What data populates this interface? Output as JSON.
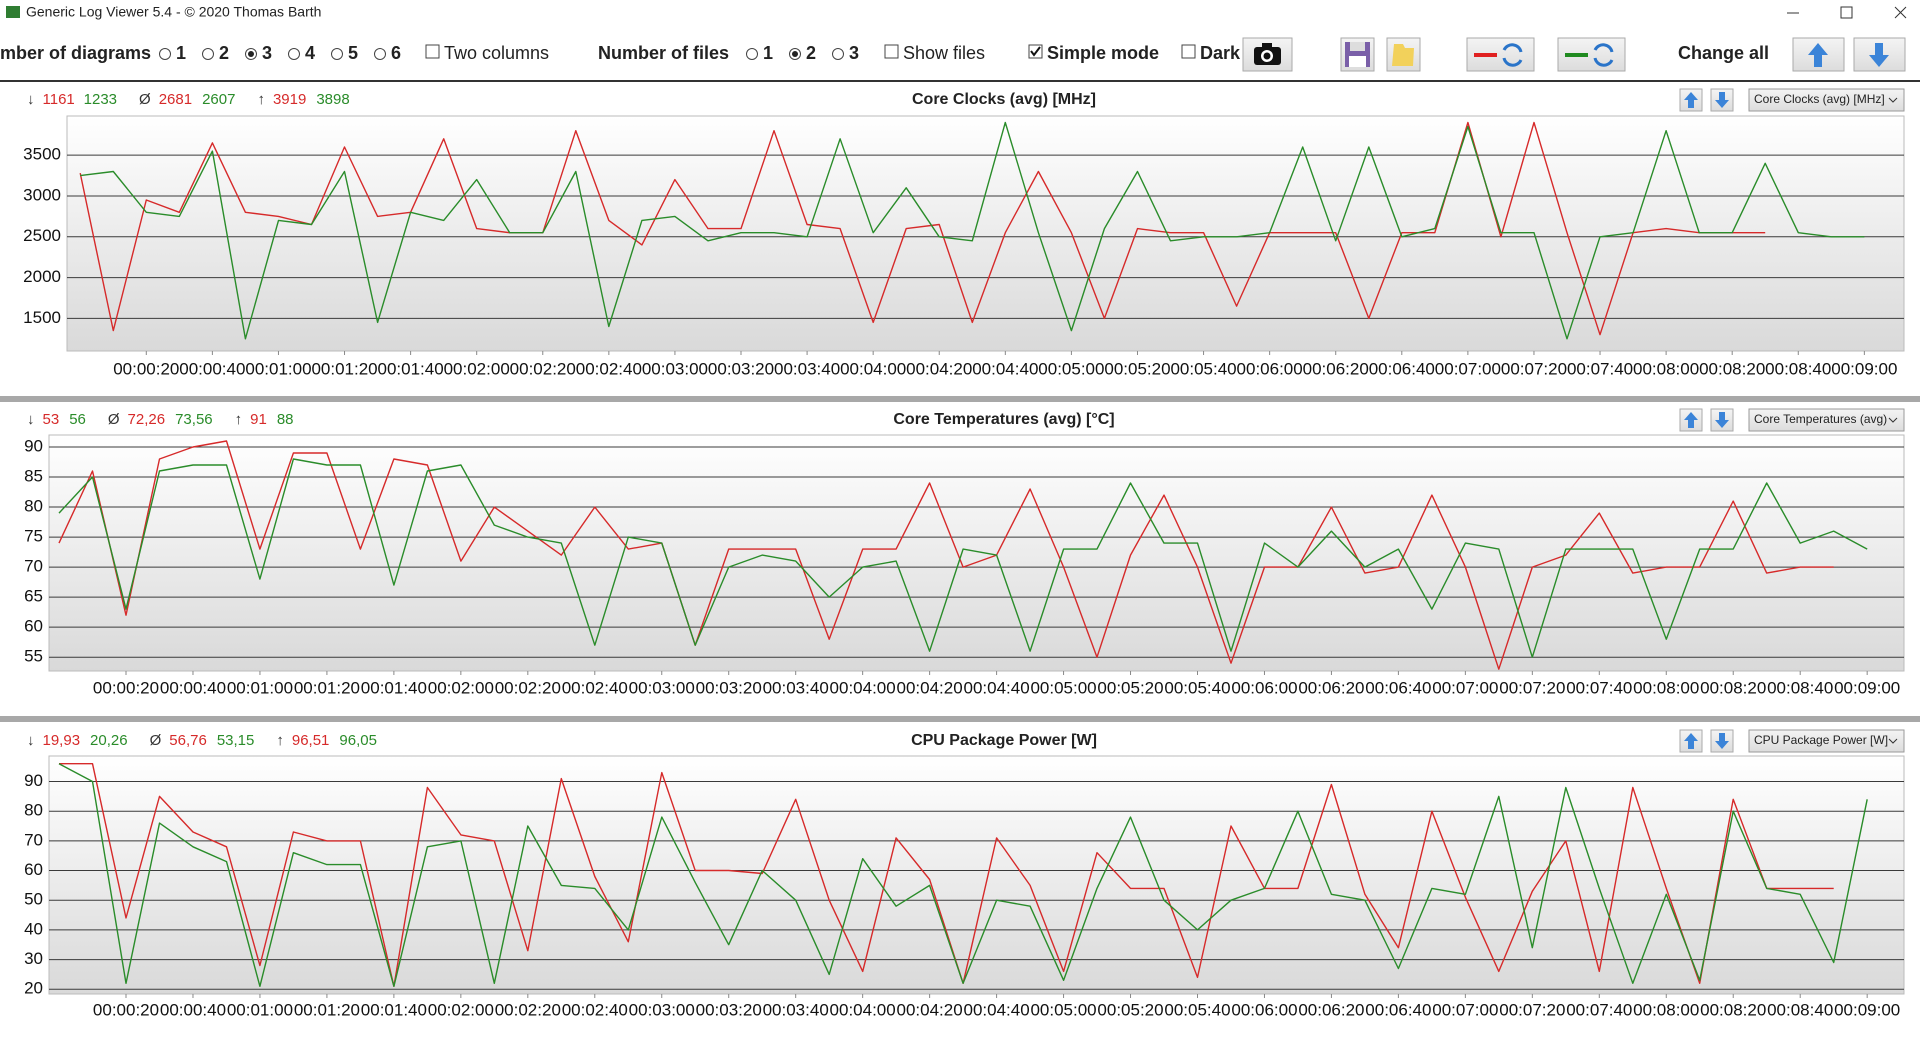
{
  "window": {
    "title": "Generic Log Viewer 5.4 - © 2020 Thomas Barth"
  },
  "toolbar": {
    "diagrams": {
      "label": "mber of diagrams",
      "options": [
        "1",
        "2",
        "3",
        "4",
        "5",
        "6"
      ],
      "selected": 2
    },
    "two_columns": {
      "label": "Two columns",
      "checked": false
    },
    "files": {
      "label": "Number of files",
      "options": [
        "1",
        "2",
        "3"
      ],
      "selected": 1
    },
    "show_files": {
      "label": "Show files",
      "checked": false
    },
    "simple_mode": {
      "label": "Simple mode",
      "checked": true
    },
    "dark": {
      "label": "Dark",
      "checked": false
    },
    "change_all": "Change all"
  },
  "chart_data": [
    {
      "type": "line",
      "title": "Core Clocks (avg) [MHz]",
      "dropdown": "Core Clocks (avg) [MHz]",
      "stats": {
        "min_symbol": "↓",
        "min": [
          "1161",
          "1233"
        ],
        "avg_symbol": "Ø",
        "avg": [
          "2681",
          "2607"
        ],
        "max_symbol": "↑",
        "max": [
          "3919",
          "3898"
        ]
      },
      "x": [
        0,
        10,
        20,
        30,
        40,
        50,
        60,
        70,
        80,
        90,
        100,
        110,
        120,
        130,
        140,
        150,
        160,
        170,
        180,
        190,
        200,
        210,
        220,
        230,
        240,
        250,
        260,
        270,
        280,
        290,
        300,
        310,
        320,
        330,
        340,
        350,
        360,
        370,
        380,
        390,
        400,
        410,
        420,
        430,
        440,
        450,
        460,
        470,
        480,
        490,
        500,
        510,
        520,
        530,
        540
      ],
      "xlim": [
        -4,
        552
      ],
      "xticks": [
        {
          "value": 20,
          "label": "00:00:20"
        },
        {
          "value": 40,
          "label": "00:00:40"
        },
        {
          "value": 60,
          "label": "00:01:00"
        },
        {
          "value": 80,
          "label": "00:01:20"
        },
        {
          "value": 100,
          "label": "00:01:40"
        },
        {
          "value": 120,
          "label": "00:02:00"
        },
        {
          "value": 140,
          "label": "00:02:20"
        },
        {
          "value": 160,
          "label": "00:02:40"
        },
        {
          "value": 180,
          "label": "00:03:00"
        },
        {
          "value": 200,
          "label": "00:03:20"
        },
        {
          "value": 220,
          "label": "00:03:40"
        },
        {
          "value": 240,
          "label": "00:04:00"
        },
        {
          "value": 260,
          "label": "00:04:20"
        },
        {
          "value": 280,
          "label": "00:04:40"
        },
        {
          "value": 300,
          "label": "00:05:00"
        },
        {
          "value": 320,
          "label": "00:05:20"
        },
        {
          "value": 340,
          "label": "00:05:40"
        },
        {
          "value": 360,
          "label": "00:06:00"
        },
        {
          "value": 380,
          "label": "00:06:20"
        },
        {
          "value": 400,
          "label": "00:06:40"
        },
        {
          "value": 420,
          "label": "00:07:00"
        },
        {
          "value": 440,
          "label": "00:07:20"
        },
        {
          "value": 460,
          "label": "00:07:40"
        },
        {
          "value": 480,
          "label": "00:08:00"
        },
        {
          "value": 500,
          "label": "00:08:20"
        },
        {
          "value": 520,
          "label": "00:08:40"
        },
        {
          "value": 540,
          "label": "00:09:00"
        }
      ],
      "ylim": [
        1100,
        3980
      ],
      "yticks": [
        1500,
        2000,
        2500,
        3000,
        3500
      ],
      "grid": true,
      "series": [
        {
          "color": "#d62a2a",
          "values": [
            3280,
            1350,
            2950,
            2800,
            3650,
            2800,
            2750,
            2650,
            3600,
            2750,
            2800,
            3700,
            2600,
            2550,
            2550,
            3800,
            2700,
            2400,
            3200,
            2600,
            2600,
            3800,
            2650,
            2600,
            1450,
            2600,
            2650,
            1450,
            2550,
            3300,
            2550,
            1500,
            2600,
            2550,
            2550,
            1650,
            2550,
            2550,
            2550,
            1500,
            2550,
            2550,
            3900,
            2500,
            3900,
            2550,
            1300,
            2550,
            2600,
            2550,
            2550,
            2550,
            null,
            null,
            null
          ]
        },
        {
          "color": "#2a8c2a",
          "values": [
            3250,
            3300,
            2800,
            2750,
            3550,
            1250,
            2700,
            2650,
            3300,
            1450,
            2800,
            2700,
            3200,
            2550,
            2550,
            3300,
            1400,
            2700,
            2750,
            2450,
            2550,
            2550,
            2500,
            3700,
            2550,
            3100,
            2500,
            2450,
            3900,
            2550,
            1350,
            2600,
            3300,
            2450,
            2500,
            2500,
            2550,
            3600,
            2450,
            3600,
            2500,
            2600,
            3850,
            2550,
            2550,
            1250,
            2500,
            2550,
            3800,
            2550,
            2550,
            3400,
            2550,
            2500,
            2500
          ]
        }
      ]
    },
    {
      "type": "line",
      "title": "Core Temperatures (avg) [°C]",
      "dropdown": "Core Temperatures (avg)",
      "stats": {
        "min_symbol": "↓",
        "min": [
          "53",
          "56"
        ],
        "avg_symbol": "Ø",
        "avg": [
          "72,26",
          "73,56"
        ],
        "max_symbol": "↑",
        "max": [
          "91",
          "88"
        ]
      },
      "x": [
        0,
        10,
        20,
        30,
        40,
        50,
        60,
        70,
        80,
        90,
        100,
        110,
        120,
        130,
        140,
        150,
        160,
        170,
        180,
        190,
        200,
        210,
        220,
        230,
        240,
        250,
        260,
        270,
        280,
        290,
        300,
        310,
        320,
        330,
        340,
        350,
        360,
        370,
        380,
        390,
        400,
        410,
        420,
        430,
        440,
        450,
        460,
        470,
        480,
        490,
        500,
        510,
        520,
        530,
        540
      ],
      "xlim": [
        -3,
        551
      ],
      "xticks": [
        {
          "value": 20,
          "label": "00:00:20"
        },
        {
          "value": 40,
          "label": "00:00:40"
        },
        {
          "value": 60,
          "label": "00:01:00"
        },
        {
          "value": 80,
          "label": "00:01:20"
        },
        {
          "value": 100,
          "label": "00:01:40"
        },
        {
          "value": 120,
          "label": "00:02:00"
        },
        {
          "value": 140,
          "label": "00:02:20"
        },
        {
          "value": 160,
          "label": "00:02:40"
        },
        {
          "value": 180,
          "label": "00:03:00"
        },
        {
          "value": 200,
          "label": "00:03:20"
        },
        {
          "value": 220,
          "label": "00:03:40"
        },
        {
          "value": 240,
          "label": "00:04:00"
        },
        {
          "value": 260,
          "label": "00:04:20"
        },
        {
          "value": 280,
          "label": "00:04:40"
        },
        {
          "value": 300,
          "label": "00:05:00"
        },
        {
          "value": 320,
          "label": "00:05:20"
        },
        {
          "value": 340,
          "label": "00:05:40"
        },
        {
          "value": 360,
          "label": "00:06:00"
        },
        {
          "value": 380,
          "label": "00:06:20"
        },
        {
          "value": 400,
          "label": "00:06:40"
        },
        {
          "value": 420,
          "label": "00:07:00"
        },
        {
          "value": 440,
          "label": "00:07:20"
        },
        {
          "value": 460,
          "label": "00:07:40"
        },
        {
          "value": 480,
          "label": "00:08:00"
        },
        {
          "value": 500,
          "label": "00:08:20"
        },
        {
          "value": 520,
          "label": "00:08:40"
        },
        {
          "value": 540,
          "label": "00:09:00"
        }
      ],
      "ylim": [
        52.7,
        92
      ],
      "yticks": [
        55,
        60,
        65,
        70,
        75,
        80,
        85,
        90
      ],
      "grid": true,
      "series": [
        {
          "color": "#d62a2a",
          "values": [
            74,
            86,
            62,
            88,
            90,
            91,
            73,
            89,
            89,
            73,
            88,
            87,
            71,
            80,
            76,
            72,
            80,
            73,
            74,
            57,
            73,
            73,
            73,
            58,
            73,
            73,
            84,
            70,
            72,
            83,
            70,
            55,
            72,
            82,
            70,
            54,
            70,
            70,
            80,
            69,
            70,
            82,
            70,
            53,
            70,
            72,
            79,
            69,
            70,
            70,
            81,
            69,
            70,
            70,
            null
          ]
        },
        {
          "color": "#2a8c2a",
          "values": [
            79,
            85,
            63,
            86,
            87,
            87,
            68,
            88,
            87,
            87,
            67,
            86,
            87,
            77,
            75,
            74,
            57,
            75,
            74,
            57,
            70,
            72,
            71,
            65,
            70,
            71,
            56,
            73,
            72,
            56,
            73,
            73,
            84,
            74,
            74,
            56,
            74,
            70,
            76,
            70,
            73,
            63,
            74,
            73,
            55,
            73,
            73,
            73,
            58,
            73,
            73,
            84,
            74,
            76,
            73
          ]
        }
      ]
    },
    {
      "type": "line",
      "title": "CPU Package Power [W]",
      "dropdown": "CPU Package Power [W]",
      "stats": {
        "min_symbol": "↓",
        "min": [
          "19,93",
          "20,26"
        ],
        "avg_symbol": "Ø",
        "avg": [
          "56,76",
          "53,15"
        ],
        "max_symbol": "↑",
        "max": [
          "96,51",
          "96,05"
        ]
      },
      "x": [
        0,
        10,
        20,
        30,
        40,
        50,
        60,
        70,
        80,
        90,
        100,
        110,
        120,
        130,
        140,
        150,
        160,
        170,
        180,
        190,
        200,
        210,
        220,
        230,
        240,
        250,
        260,
        270,
        280,
        290,
        300,
        310,
        320,
        330,
        340,
        350,
        360,
        370,
        380,
        390,
        400,
        410,
        420,
        430,
        440,
        450,
        460,
        470,
        480,
        490,
        500,
        510,
        520,
        530,
        540
      ],
      "xlim": [
        -3,
        551
      ],
      "xticks": [
        {
          "value": 20,
          "label": "00:00:20"
        },
        {
          "value": 40,
          "label": "00:00:40"
        },
        {
          "value": 60,
          "label": "00:01:00"
        },
        {
          "value": 80,
          "label": "00:01:20"
        },
        {
          "value": 100,
          "label": "00:01:40"
        },
        {
          "value": 120,
          "label": "00:02:00"
        },
        {
          "value": 140,
          "label": "00:02:20"
        },
        {
          "value": 160,
          "label": "00:02:40"
        },
        {
          "value": 180,
          "label": "00:03:00"
        },
        {
          "value": 200,
          "label": "00:03:20"
        },
        {
          "value": 220,
          "label": "00:03:40"
        },
        {
          "value": 240,
          "label": "00:04:00"
        },
        {
          "value": 260,
          "label": "00:04:20"
        },
        {
          "value": 280,
          "label": "00:04:40"
        },
        {
          "value": 300,
          "label": "00:05:00"
        },
        {
          "value": 320,
          "label": "00:05:20"
        },
        {
          "value": 340,
          "label": "00:05:40"
        },
        {
          "value": 360,
          "label": "00:06:00"
        },
        {
          "value": 380,
          "label": "00:06:20"
        },
        {
          "value": 400,
          "label": "00:06:40"
        },
        {
          "value": 420,
          "label": "00:07:00"
        },
        {
          "value": 440,
          "label": "00:07:20"
        },
        {
          "value": 460,
          "label": "00:07:40"
        },
        {
          "value": 480,
          "label": "00:08:00"
        },
        {
          "value": 500,
          "label": "00:08:20"
        },
        {
          "value": 520,
          "label": "00:08:40"
        },
        {
          "value": 540,
          "label": "00:09:00"
        }
      ],
      "ylim": [
        18.4,
        98.6
      ],
      "yticks": [
        20,
        30,
        40,
        50,
        60,
        70,
        80,
        90
      ],
      "grid": true,
      "series": [
        {
          "color": "#d62a2a",
          "values": [
            96,
            96,
            44,
            85,
            73,
            68,
            28,
            73,
            70,
            70,
            21,
            88,
            72,
            70,
            33,
            91,
            58,
            36,
            93,
            60,
            60,
            59,
            84,
            50,
            26,
            71,
            57,
            22,
            71,
            55,
            26,
            66,
            54,
            54,
            24,
            75,
            54,
            54,
            89,
            52,
            34,
            80,
            51,
            26,
            53,
            70,
            26,
            88,
            54,
            22,
            84,
            54,
            54,
            54,
            null
          ]
        },
        {
          "color": "#2a8c2a",
          "values": [
            96,
            90,
            22,
            76,
            68,
            63,
            21,
            66,
            62,
            62,
            21,
            68,
            70,
            22,
            75,
            55,
            54,
            40,
            78,
            56,
            35,
            60,
            50,
            25,
            64,
            48,
            55,
            22,
            50,
            48,
            23,
            54,
            78,
            50,
            40,
            50,
            54,
            80,
            52,
            50,
            27,
            54,
            52,
            85,
            34,
            88,
            54,
            22,
            52,
            23,
            80,
            54,
            52,
            29,
            84
          ]
        }
      ]
    }
  ]
}
